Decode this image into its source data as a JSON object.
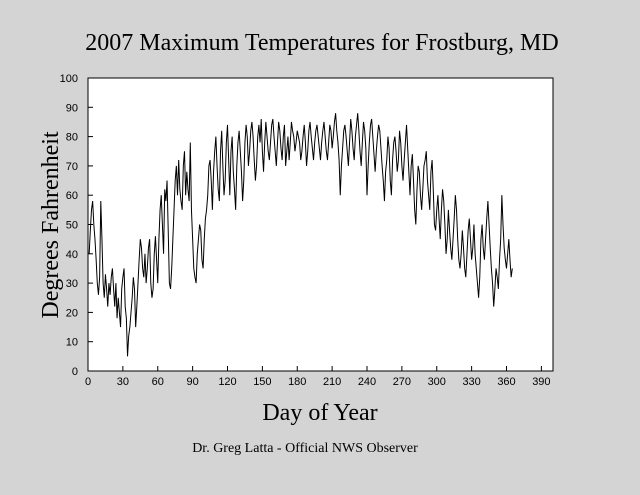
{
  "chart_data": {
    "type": "line",
    "title": "2007 Maximum Temperatures for Frostburg, MD",
    "xlabel": "Day of Year",
    "ylabel": "Degrees Fahrenheit",
    "footnote": "Dr. Greg Latta - Official NWS Observer",
    "color": "#000000",
    "xlim": [
      0,
      400
    ],
    "ylim": [
      0,
      100
    ],
    "xticks": [
      0,
      30,
      60,
      90,
      120,
      150,
      180,
      210,
      240,
      270,
      300,
      330,
      360,
      390
    ],
    "yticks": [
      0,
      10,
      20,
      30,
      40,
      50,
      60,
      70,
      80,
      90,
      100
    ],
    "x": [
      1,
      2,
      3,
      4,
      5,
      6,
      7,
      8,
      9,
      10,
      11,
      12,
      13,
      14,
      15,
      16,
      17,
      18,
      19,
      20,
      21,
      22,
      23,
      24,
      25,
      26,
      27,
      28,
      29,
      30,
      31,
      32,
      33,
      34,
      35,
      36,
      37,
      38,
      39,
      40,
      41,
      42,
      43,
      44,
      45,
      46,
      47,
      48,
      49,
      50,
      51,
      52,
      53,
      54,
      55,
      56,
      57,
      58,
      59,
      60,
      61,
      62,
      63,
      64,
      65,
      66,
      67,
      68,
      69,
      70,
      71,
      72,
      73,
      74,
      75,
      76,
      77,
      78,
      79,
      80,
      81,
      82,
      83,
      84,
      85,
      86,
      87,
      88,
      89,
      90,
      91,
      92,
      93,
      94,
      95,
      96,
      97,
      98,
      99,
      100,
      101,
      102,
      103,
      104,
      105,
      106,
      107,
      108,
      109,
      110,
      111,
      112,
      113,
      114,
      115,
      116,
      117,
      118,
      119,
      120,
      121,
      122,
      123,
      124,
      125,
      126,
      127,
      128,
      129,
      130,
      131,
      132,
      133,
      134,
      135,
      136,
      137,
      138,
      139,
      140,
      141,
      142,
      143,
      144,
      145,
      146,
      147,
      148,
      149,
      150,
      151,
      152,
      153,
      154,
      155,
      156,
      157,
      158,
      159,
      160,
      161,
      162,
      163,
      164,
      165,
      166,
      167,
      168,
      169,
      170,
      171,
      172,
      173,
      174,
      175,
      176,
      177,
      178,
      179,
      180,
      181,
      182,
      183,
      184,
      185,
      186,
      187,
      188,
      189,
      190,
      191,
      192,
      193,
      194,
      195,
      196,
      197,
      198,
      199,
      200,
      201,
      202,
      203,
      204,
      205,
      206,
      207,
      208,
      209,
      210,
      211,
      212,
      213,
      214,
      215,
      216,
      217,
      218,
      219,
      220,
      221,
      222,
      223,
      224,
      225,
      226,
      227,
      228,
      229,
      230,
      231,
      232,
      233,
      234,
      235,
      236,
      237,
      238,
      239,
      240,
      241,
      242,
      243,
      244,
      245,
      246,
      247,
      248,
      249,
      250,
      251,
      252,
      253,
      254,
      255,
      256,
      257,
      258,
      259,
      260,
      261,
      262,
      263,
      264,
      265,
      266,
      267,
      268,
      269,
      270,
      271,
      272,
      273,
      274,
      275,
      276,
      277,
      278,
      279,
      280,
      281,
      282,
      283,
      284,
      285,
      286,
      287,
      288,
      289,
      290,
      291,
      292,
      293,
      294,
      295,
      296,
      297,
      298,
      299,
      300,
      301,
      302,
      303,
      304,
      305,
      306,
      307,
      308,
      309,
      310,
      311,
      312,
      313,
      314,
      315,
      316,
      317,
      318,
      319,
      320,
      321,
      322,
      323,
      324,
      325,
      326,
      327,
      328,
      329,
      330,
      331,
      332,
      333,
      334,
      335,
      336,
      337,
      338,
      339,
      340,
      341,
      342,
      343,
      344,
      345,
      346,
      347,
      348,
      349,
      350,
      351,
      352,
      353,
      354,
      355,
      356,
      357,
      358,
      359,
      360,
      361,
      362,
      363,
      364,
      365
    ],
    "values": [
      40,
      48,
      55,
      58,
      50,
      45,
      38,
      30,
      26,
      32,
      58,
      45,
      30,
      25,
      33,
      28,
      22,
      30,
      26,
      32,
      35,
      28,
      22,
      30,
      18,
      25,
      20,
      15,
      28,
      32,
      35,
      22,
      18,
      5,
      12,
      15,
      20,
      25,
      32,
      28,
      15,
      22,
      30,
      38,
      45,
      42,
      35,
      32,
      40,
      30,
      35,
      42,
      45,
      30,
      25,
      28,
      40,
      46,
      38,
      30,
      45,
      55,
      60,
      50,
      40,
      62,
      58,
      65,
      48,
      30,
      28,
      35,
      45,
      55,
      65,
      70,
      60,
      72,
      62,
      58,
      55,
      70,
      75,
      60,
      68,
      62,
      58,
      78,
      55,
      45,
      35,
      32,
      30,
      40,
      45,
      50,
      48,
      38,
      35,
      45,
      52,
      55,
      60,
      70,
      72,
      65,
      55,
      68,
      75,
      80,
      70,
      62,
      58,
      75,
      82,
      70,
      60,
      65,
      78,
      84,
      72,
      60,
      75,
      80,
      68,
      62,
      55,
      70,
      78,
      82,
      75,
      68,
      58,
      65,
      78,
      84,
      80,
      70,
      75,
      82,
      85,
      80,
      72,
      65,
      70,
      80,
      84,
      78,
      86,
      75,
      68,
      78,
      85,
      80,
      75,
      72,
      78,
      84,
      86,
      80,
      75,
      70,
      78,
      85,
      82,
      76,
      72,
      80,
      84,
      70,
      75,
      80,
      72,
      78,
      85,
      82,
      80,
      75,
      78,
      82,
      80,
      78,
      72,
      75,
      80,
      84,
      78,
      70,
      75,
      82,
      85,
      80,
      76,
      72,
      78,
      82,
      84,
      80,
      76,
      72,
      78,
      82,
      85,
      80,
      75,
      72,
      78,
      84,
      82,
      76,
      80,
      85,
      88,
      82,
      78,
      72,
      60,
      70,
      76,
      82,
      84,
      80,
      75,
      70,
      78,
      86,
      82,
      76,
      72,
      80,
      84,
      88,
      82,
      75,
      70,
      78,
      85,
      82,
      76,
      60,
      70,
      78,
      84,
      86,
      80,
      74,
      68,
      75,
      80,
      84,
      82,
      76,
      70,
      65,
      58,
      68,
      72,
      80,
      76,
      65,
      60,
      72,
      78,
      80,
      75,
      68,
      72,
      82,
      78,
      70,
      65,
      72,
      78,
      84,
      76,
      68,
      60,
      70,
      74,
      65,
      55,
      50,
      62,
      70,
      68,
      60,
      55,
      62,
      70,
      72,
      75,
      65,
      60,
      55,
      68,
      72,
      62,
      50,
      48,
      55,
      60,
      52,
      45,
      55,
      62,
      58,
      50,
      40,
      45,
      55,
      48,
      42,
      38,
      45,
      52,
      60,
      55,
      45,
      38,
      35,
      40,
      48,
      42,
      35,
      32,
      40,
      48,
      52,
      45,
      38,
      42,
      50,
      40,
      35,
      30,
      25,
      32,
      45,
      50,
      42,
      38,
      45,
      52,
      58,
      50,
      42,
      35,
      30,
      22,
      28,
      35,
      32,
      28,
      38,
      45,
      60,
      50,
      42,
      38,
      35,
      40,
      45,
      38,
      32,
      35
    ]
  }
}
